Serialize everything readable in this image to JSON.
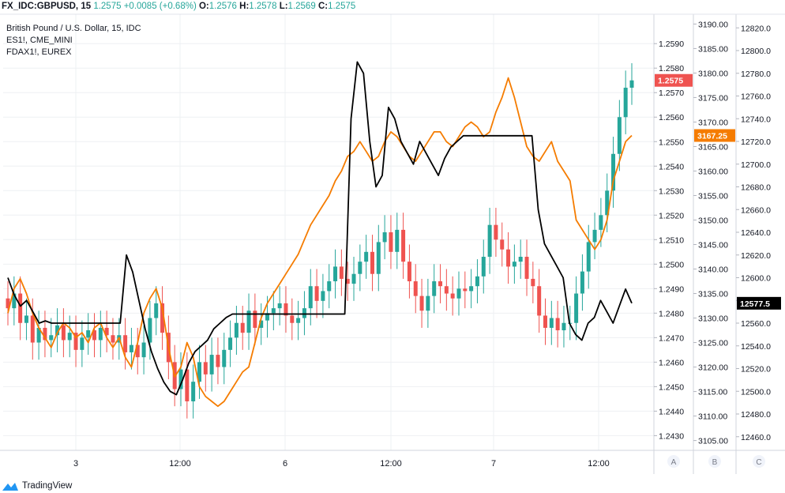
{
  "header": {
    "symbol": "FX_IDC:GBPUSD, 15",
    "last": "1.2575",
    "change": "+0.0085 (+0.68%)",
    "o_label": "O:",
    "o": "1.2576",
    "h_label": "H:",
    "h": "1.2578",
    "l_label": "L:",
    "l": "1.2569",
    "c_label": "C:",
    "c": "1.2575"
  },
  "legend": [
    "British Pound / U.S. Dollar, 15, IDC",
    "ES1!, CME_MINI",
    "FDAX1!, EUREX"
  ],
  "brand": "TradingView",
  "colors": {
    "up": "#26a69a",
    "down": "#ef5350",
    "es": "#f57c00",
    "fdax": "#000000",
    "grid": "#eef0f3"
  },
  "chart_data": {
    "type": "line",
    "x_ticks": [
      "3",
      "12:00",
      "6",
      "12:00",
      "7",
      "12:00"
    ],
    "axis_scale_labels": [
      "A",
      "B",
      "C"
    ],
    "axes": [
      {
        "name": "GBPUSD",
        "ylim": [
          1.2424,
          1.2602
        ],
        "ticks": [
          "1.2430",
          "1.2440",
          "1.2450",
          "1.2460",
          "1.2470",
          "1.2480",
          "1.2490",
          "1.2500",
          "1.2510",
          "1.2520",
          "1.2530",
          "1.2540",
          "1.2550",
          "1.2560",
          "1.2570",
          "1.2580",
          "1.2590"
        ],
        "last_label": "1.2575",
        "last_value": 1.2575
      },
      {
        "name": "ES1!",
        "ylim": [
          3103,
          3192
        ],
        "ticks": [
          "3105.00",
          "3110.00",
          "3115.00",
          "3120.00",
          "3125.00",
          "3130.00",
          "3135.00",
          "3140.00",
          "3145.00",
          "3150.00",
          "3155.00",
          "3160.00",
          "3165.00",
          "3170.00",
          "3175.00",
          "3180.00",
          "3185.00",
          "3190.00"
        ],
        "last_label": "3167.25",
        "last_value": 3167.25
      },
      {
        "name": "FDAX1!",
        "ylim": [
          12448,
          12832
        ],
        "ticks": [
          "12460.0",
          "12480.0",
          "12500.0",
          "12520.0",
          "12540.0",
          "12560.0",
          "12580.0",
          "12600.0",
          "12620.0",
          "12640.0",
          "12660.0",
          "12680.0",
          "12700.0",
          "12720.0",
          "12740.0",
          "12760.0",
          "12780.0",
          "12800.0",
          "12820.0"
        ],
        "last_label": "12577.5",
        "last_value": 12577.5
      }
    ],
    "series": [
      {
        "name": "British Pound / U.S. Dollar, 15, IDC",
        "kind": "candlestick",
        "close": [
          1.2482,
          1.2488,
          1.2476,
          1.2479,
          1.2468,
          1.2474,
          1.2469,
          1.2471,
          1.2475,
          1.2469,
          1.2472,
          1.2465,
          1.247,
          1.2473,
          1.2469,
          1.2474,
          1.2471,
          1.2468,
          1.2471,
          1.2464,
          1.2467,
          1.2462,
          1.2468,
          1.2478,
          1.2484,
          1.2472,
          1.246,
          1.2449,
          1.2457,
          1.2444,
          1.2452,
          1.246,
          1.2455,
          1.2463,
          1.2458,
          1.2465,
          1.247,
          1.2476,
          1.2472,
          1.2481,
          1.2474,
          1.2477,
          1.248,
          1.2482,
          1.2484,
          1.2479,
          1.2476,
          1.2478,
          1.2482,
          1.2491,
          1.2485,
          1.2489,
          1.2493,
          1.2499,
          1.2494,
          1.2492,
          1.2496,
          1.2501,
          1.2505,
          1.2496,
          1.2509,
          1.2513,
          1.2505,
          1.2514,
          1.2501,
          1.2493,
          1.2487,
          1.2481,
          1.2487,
          1.2493,
          1.2491,
          1.2488,
          1.2486,
          1.249,
          1.2489,
          1.2491,
          1.2495,
          1.2503,
          1.2516,
          1.251,
          1.2506,
          1.2499,
          1.2501,
          1.2503,
          1.2494,
          1.2491,
          1.2479,
          1.2474,
          1.2478,
          1.2473,
          1.2476,
          1.2476,
          1.2488,
          1.2497,
          1.2509,
          1.2514,
          1.252,
          1.253,
          1.2545,
          1.256,
          1.2572,
          1.2575
        ],
        "up_color": "#26a69a",
        "down_color": "#ef5350"
      },
      {
        "name": "ES1!, CME_MINI",
        "values": [
          3131,
          3136,
          3138,
          3135,
          3131,
          3128,
          3126,
          3124,
          3127,
          3129,
          3128,
          3126,
          3127,
          3125,
          3128,
          3129,
          3126,
          3124,
          3126,
          3122,
          3120,
          3125,
          3131,
          3134,
          3136,
          3132,
          3124,
          3118,
          3120,
          3125,
          3122,
          3116,
          3114,
          3113,
          3112,
          3113,
          3115,
          3117,
          3119,
          3120,
          3125,
          3130,
          3133,
          3135,
          3137,
          3139,
          3141,
          3143,
          3146,
          3149,
          3151,
          3153,
          3155,
          3158,
          3160,
          3163,
          3164,
          3166,
          3164,
          3162,
          3163,
          3166,
          3168,
          3167,
          3165,
          3163,
          3162,
          3164,
          3166,
          3168,
          3168,
          3166,
          3165,
          3167,
          3169,
          3170,
          3169,
          3167,
          3168,
          3172,
          3175,
          3179,
          3175,
          3170,
          3165,
          3163,
          3162,
          3164,
          3166,
          3162,
          3160,
          3158,
          3150,
          3148,
          3146,
          3144,
          3146,
          3150,
          3158,
          3162,
          3166,
          3167.25
        ],
        "color": "#f57c00"
      },
      {
        "name": "FDAX1!, EUREX",
        "values": [
          12600,
          12585,
          12575,
          12580,
          12570,
          12560,
          12562,
          12560,
          12560,
          12560,
          12560,
          12560,
          12560,
          12560,
          12560,
          12560,
          12560,
          12560,
          12560,
          12620,
          12605,
          12580,
          12555,
          12535,
          12520,
          12508,
          12500,
          12497,
          12510,
          12525,
          12535,
          12540,
          12545,
          12555,
          12560,
          12565,
          12568,
          12568,
          12568,
          12568,
          12568,
          12568,
          12568,
          12568,
          12568,
          12568,
          12568,
          12568,
          12568,
          12568,
          12568,
          12568,
          12568,
          12568,
          12568,
          12740,
          12790,
          12780,
          12720,
          12680,
          12690,
          12750,
          12740,
          12720,
          12710,
          12700,
          12720,
          12710,
          12700,
          12690,
          12705,
          12715,
          12720,
          12725,
          12725,
          12725,
          12725,
          12725,
          12725,
          12725,
          12725,
          12725,
          12725,
          12725,
          12725,
          12660,
          12630,
          12620,
          12610,
          12600,
          12560,
          12550,
          12545,
          12560,
          12565,
          12580,
          12570,
          12560,
          12575,
          12590,
          12577.5
        ],
        "color": "#000000"
      }
    ]
  }
}
